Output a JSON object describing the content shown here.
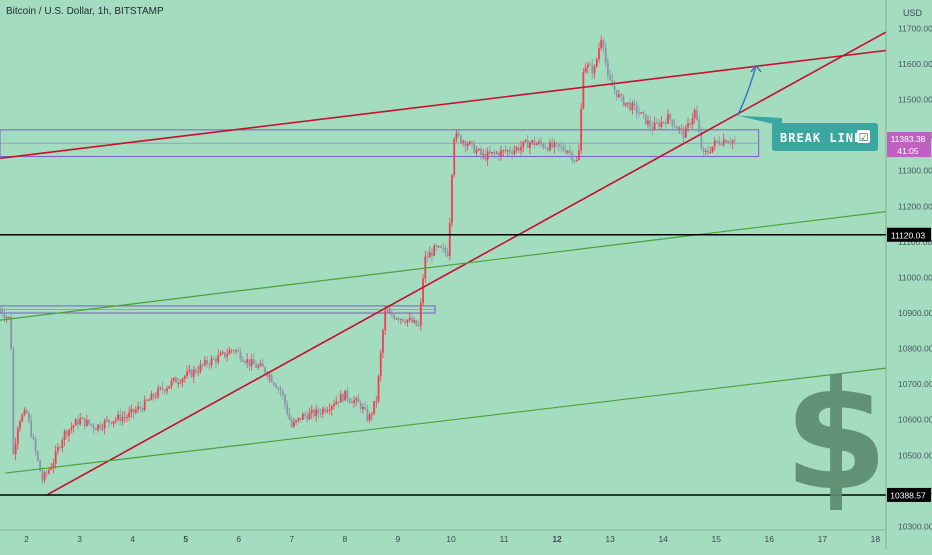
{
  "header": {
    "title": "Bitcoin / U.S. Dollar, 1h, BITSTAMP",
    "currency": "USD"
  },
  "price_labels": {
    "current_price": "11383.38",
    "countdown": "41:05",
    "level_high": "11120.03",
    "level_low": "10388.57"
  },
  "annotation": {
    "text": "BREAK LINE",
    "check_icon": "☑"
  },
  "logo": {
    "symbol": "$"
  },
  "colors": {
    "background": "#a3dcbe",
    "candle_up": "#f03e52",
    "candle_down": "#8a95a8",
    "trend_red": "#c8102e",
    "trend_green": "#4aa33c",
    "horizontal_line": "#000000",
    "zone_box": "#7a5ccf",
    "projection_arrow": "#2f74c8",
    "callout": "#3aa7a0",
    "current_price_tag": "#c060c0"
  },
  "chart_data": {
    "type": "candlestick",
    "title": "Bitcoin / U.S. Dollar, 1h, BITSTAMP",
    "ylabel": "USD",
    "ylim": [
      10290,
      11780
    ],
    "xlim": [
      1.5,
      18.2
    ],
    "y_ticks": [
      10300,
      10400,
      10500,
      10600,
      10700,
      10800,
      10900,
      11000,
      11100,
      11200,
      11300,
      11400,
      11500,
      11600,
      11700
    ],
    "y_tick_labels": [
      "10300.00",
      "10400.00",
      "10500.00",
      "10600.00",
      "10700.00",
      "10800.00",
      "10900.00",
      "11000.00",
      "11100.00",
      "11200.00",
      "11300.00",
      "11400.00",
      "11500.00",
      "11600.00",
      "11700.00"
    ],
    "x_ticks": [
      2,
      3,
      4,
      5,
      6,
      7,
      8,
      9,
      10,
      11,
      12,
      13,
      14,
      15,
      16,
      17,
      18
    ],
    "x_tick_labels": [
      "2",
      "3",
      "4",
      "5",
      "6",
      "7",
      "8",
      "9",
      "10",
      "11",
      "12",
      "13",
      "14",
      "15",
      "16",
      "17",
      "18"
    ],
    "bold_x_ticks": [
      5,
      12
    ],
    "price_path": [
      [
        1.5,
        10910
      ],
      [
        1.7,
        10880
      ],
      [
        1.75,
        10500
      ],
      [
        1.85,
        10600
      ],
      [
        2.0,
        10620
      ],
      [
        2.2,
        10490
      ],
      [
        2.3,
        10430
      ],
      [
        2.5,
        10480
      ],
      [
        2.7,
        10560
      ],
      [
        3.0,
        10600
      ],
      [
        3.3,
        10580
      ],
      [
        3.6,
        10600
      ],
      [
        3.9,
        10610
      ],
      [
        4.2,
        10640
      ],
      [
        4.5,
        10680
      ],
      [
        4.8,
        10710
      ],
      [
        5.1,
        10730
      ],
      [
        5.4,
        10760
      ],
      [
        5.7,
        10780
      ],
      [
        5.9,
        10800
      ],
      [
        6.2,
        10760
      ],
      [
        6.5,
        10740
      ],
      [
        6.8,
        10680
      ],
      [
        7.0,
        10580
      ],
      [
        7.2,
        10610
      ],
      [
        7.5,
        10620
      ],
      [
        7.8,
        10650
      ],
      [
        8.0,
        10670
      ],
      [
        8.3,
        10640
      ],
      [
        8.45,
        10600
      ],
      [
        8.6,
        10660
      ],
      [
        8.75,
        10900
      ],
      [
        9.0,
        10890
      ],
      [
        9.2,
        10880
      ],
      [
        9.4,
        10860
      ],
      [
        9.5,
        11050
      ],
      [
        9.7,
        11080
      ],
      [
        9.95,
        11070
      ],
      [
        10.05,
        11400
      ],
      [
        10.3,
        11380
      ],
      [
        10.6,
        11340
      ],
      [
        10.9,
        11350
      ],
      [
        11.2,
        11360
      ],
      [
        11.5,
        11380
      ],
      [
        11.8,
        11370
      ],
      [
        12.2,
        11360
      ],
      [
        12.4,
        11320
      ],
      [
        12.5,
        11600
      ],
      [
        12.7,
        11580
      ],
      [
        12.85,
        11690
      ],
      [
        12.95,
        11560
      ],
      [
        13.2,
        11500
      ],
      [
        13.5,
        11470
      ],
      [
        13.8,
        11420
      ],
      [
        14.1,
        11450
      ],
      [
        14.4,
        11400
      ],
      [
        14.6,
        11470
      ],
      [
        14.75,
        11340
      ],
      [
        15.0,
        11380
      ],
      [
        15.2,
        11390
      ],
      [
        15.35,
        11383
      ]
    ],
    "horizontal_levels": [
      {
        "value": 11120.03,
        "label": "11120.03"
      },
      {
        "value": 10388.57,
        "label": "10388.57"
      }
    ],
    "trendlines": [
      {
        "color": "red",
        "from": [
          1.5,
          11335
        ],
        "to": [
          18.2,
          11638
        ]
      },
      {
        "color": "red",
        "from": [
          2.4,
          10390
        ],
        "to": [
          18.2,
          11690
        ]
      },
      {
        "color": "green",
        "from": [
          1.5,
          10880
        ],
        "to": [
          18.2,
          11185
        ]
      },
      {
        "color": "green",
        "from": [
          1.6,
          10450
        ],
        "to": [
          18.2,
          10745
        ]
      }
    ],
    "zones": [
      {
        "from_x": 1.5,
        "to_x": 15.8,
        "y_low": 11340,
        "y_high": 11415
      },
      {
        "from_x": 1.5,
        "to_x": 9.7,
        "y_low": 10900,
        "y_high": 10920
      }
    ],
    "projection": {
      "from": [
        15.4,
        11455
      ],
      "to": [
        15.75,
        11595
      ]
    },
    "current_price": 11383.38
  }
}
